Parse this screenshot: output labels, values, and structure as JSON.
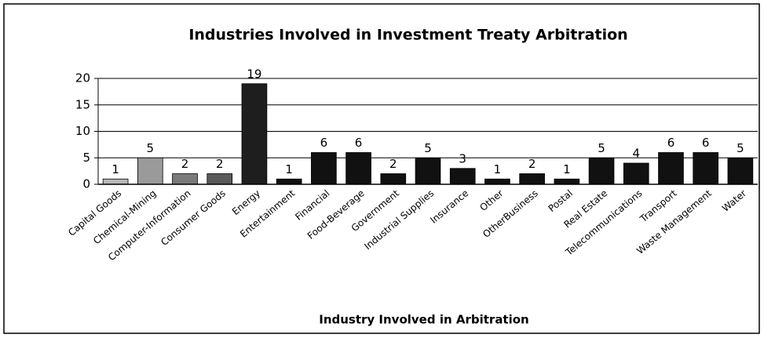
{
  "chart_data": {
    "type": "bar",
    "title": "Industries Involved in Investment Treaty Arbitration",
    "x_label": "Industry Involved in Arbitration",
    "categories": [
      "Capital Goods",
      "Chemical-Mining",
      "Computer-Information",
      "Consumer Goods",
      "Energy",
      "Entertainment",
      "Financial",
      "Food-Beverage",
      "Government",
      "Industrial Supplies",
      "Insurance",
      "Other",
      "OtherBusiness",
      "Postal",
      "Real Estate",
      "Telecommunications",
      "Transport",
      "Waste Management",
      "Water"
    ],
    "values": [
      1,
      5,
      2,
      2,
      19,
      1,
      6,
      6,
      2,
      5,
      3,
      1,
      2,
      1,
      5,
      4,
      6,
      6,
      5
    ],
    "colors": [
      "#b8b8b8",
      "#9a9a9a",
      "#7a7a7a",
      "#5a5a5a",
      "#1e1e1e",
      "#111111",
      "#111111",
      "#111111",
      "#111111",
      "#111111",
      "#111111",
      "#111111",
      "#111111",
      "#111111",
      "#111111",
      "#111111",
      "#111111",
      "#111111",
      "#111111"
    ],
    "ylim": [
      0,
      20
    ],
    "yticks": [
      0,
      5,
      10,
      15,
      20
    ],
    "grid": true
  }
}
